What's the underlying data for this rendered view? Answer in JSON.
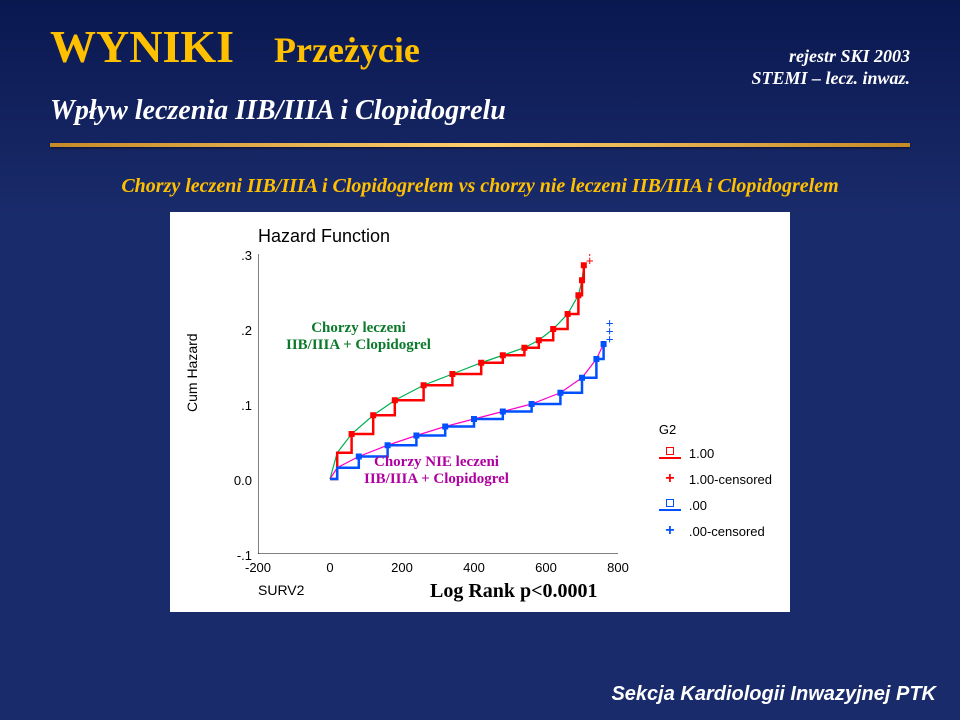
{
  "header": {
    "title_main": "WYNIKI",
    "title_sub": "Przeżycie",
    "subtitle": "Wpływ leczenia IIB/IIIA i Clopidogrelu",
    "registry_line1": "rejestr SKI 2003",
    "registry_line2": "STEMI – lecz. inwaz."
  },
  "colors": {
    "background": "#1a2b6b",
    "accent": "#ffc000",
    "rule": "#d89a30",
    "series_treated": "#ff0000",
    "series_treated_tail": "#00b050",
    "series_untreated": "#0050ff",
    "series_untreated_tail": "#ff00c8",
    "plus_treated": "#ff0000",
    "plus_untreated": "#0050ff"
  },
  "description": "Chorzy leczeni IIB/IIIA i Clopidogrelem vs chorzy nie leczeni IIB/IIIA i Clopidogrelem",
  "chart": {
    "title": "Hazard Function",
    "type": "cumulative-hazard",
    "y_label": "Cum Hazard",
    "x_label": "SURV2",
    "log_rank": "Log Rank p<0.0001",
    "ylim": [
      -0.1,
      0.3
    ],
    "yticks": [
      -0.1,
      0.0,
      0.1,
      0.2,
      0.3
    ],
    "ytick_labels": [
      "-.1",
      "0.0",
      ".1",
      ".2",
      ".3"
    ],
    "xlim": [
      -200,
      800
    ],
    "xticks": [
      -200,
      0,
      200,
      400,
      600,
      800
    ],
    "xtick_labels": [
      "-200",
      "0",
      "200",
      "400",
      "600",
      "800"
    ],
    "series": {
      "treated": {
        "label_line1": "Chorzy leczeni",
        "label_line2": "IIB/IIIA + Clopidogrel",
        "label_color": "#0a7a2a",
        "step_color": "#ff0000",
        "tail_color": "#00b050",
        "points": [
          [
            0,
            0.0
          ],
          [
            20,
            0.035
          ],
          [
            60,
            0.06
          ],
          [
            120,
            0.085
          ],
          [
            180,
            0.105
          ],
          [
            260,
            0.125
          ],
          [
            340,
            0.14
          ],
          [
            420,
            0.155
          ],
          [
            480,
            0.165
          ],
          [
            540,
            0.175
          ],
          [
            580,
            0.185
          ],
          [
            620,
            0.2
          ],
          [
            660,
            0.22
          ],
          [
            690,
            0.245
          ],
          [
            700,
            0.265
          ],
          [
            705,
            0.285
          ]
        ]
      },
      "untreated": {
        "label_line1": "Chorzy NIE leczeni",
        "label_line2": "IIB/IIIA + Clopidogrel",
        "label_color": "#b000a0",
        "step_color": "#0050ff",
        "tail_color": "#ff00c8",
        "points": [
          [
            0,
            0.0
          ],
          [
            20,
            0.015
          ],
          [
            80,
            0.03
          ],
          [
            160,
            0.045
          ],
          [
            240,
            0.058
          ],
          [
            320,
            0.07
          ],
          [
            400,
            0.08
          ],
          [
            480,
            0.09
          ],
          [
            560,
            0.1
          ],
          [
            640,
            0.115
          ],
          [
            700,
            0.135
          ],
          [
            740,
            0.16
          ],
          [
            760,
            0.18
          ]
        ]
      }
    },
    "legend": {
      "title": "G2",
      "items": [
        {
          "kind": "square-line",
          "color": "#ff0000",
          "label": "1.00"
        },
        {
          "kind": "plus",
          "color": "#ff0000",
          "label": "1.00-censored"
        },
        {
          "kind": "square-line",
          "color": "#0050ff",
          "label": ".00"
        },
        {
          "kind": "plus",
          "color": "#0050ff",
          "label": ".00-censored"
        }
      ]
    }
  },
  "footer": "Sekcja Kardiologii Inwazyjnej PTK"
}
